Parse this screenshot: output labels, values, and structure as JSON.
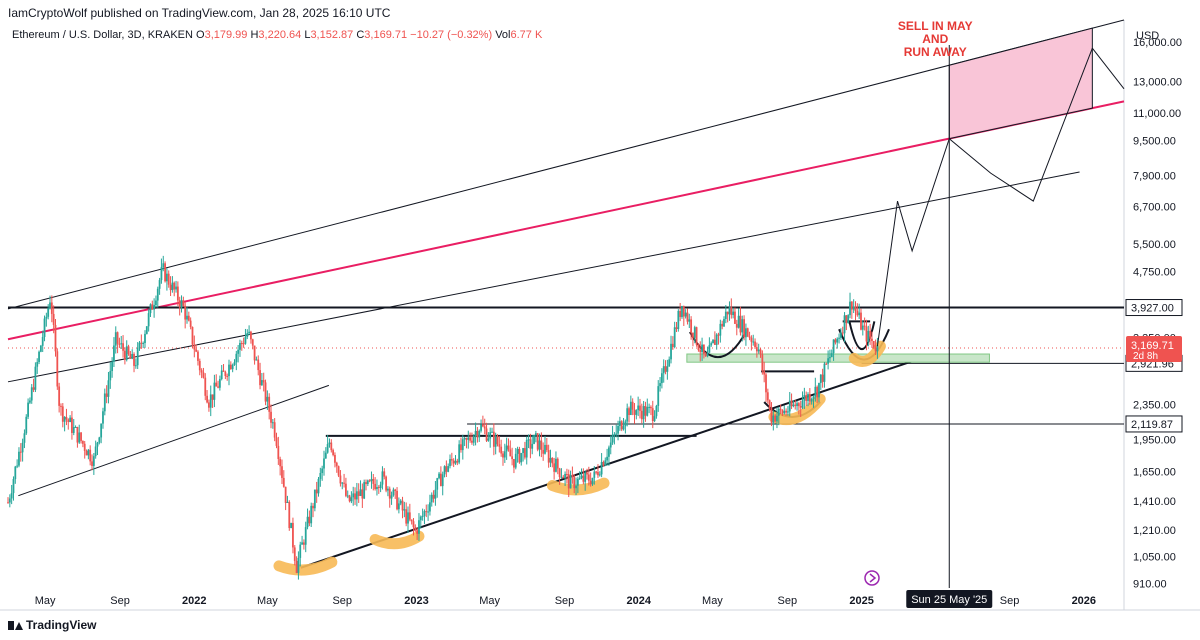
{
  "publisher": "IamCryptoWolf published on TradingView.com, Jan 28, 2025 16:10 UTC",
  "legend": {
    "symbol": "Ethereum / U.S. Dollar, 3D, KRAKEN",
    "open_label": "O",
    "open": "3,179.99",
    "high_label": "H",
    "high": "3,220.64",
    "low_label": "L",
    "low": "3,152.87",
    "close_label": "C",
    "close": "3,169.71",
    "change": "−10.27 (−0.32%)",
    "vol_label": "Vol",
    "vol": "6.77 K"
  },
  "currency": "USD",
  "footer_brand": "TradingView",
  "colors": {
    "up": "#26a69a",
    "down": "#ef5350",
    "pink_line": "#e91e63",
    "zone": "#f8bbd0",
    "support_zone": "#c8e6c9",
    "highlight": "#f7b955"
  },
  "chart_data": {
    "type": "candlestick",
    "title": "Ethereum / U.S. Dollar, 3D, KRAKEN",
    "xlabel": "",
    "ylabel": "USD",
    "x_range": [
      "2021-03",
      "2026-03"
    ],
    "y_scale": "log",
    "y_range": [
      880,
      18000
    ],
    "y_ticks": [
      16000,
      13000,
      11000,
      9500,
      7900,
      6700,
      5500,
      4750,
      3927,
      3350,
      2921.96,
      2350,
      2119.87,
      1950,
      1650,
      1410,
      1210,
      1050,
      910
    ],
    "y_tick_labels": [
      "16,000.00",
      "13,000.00",
      "11,000.00",
      "9,500.00",
      "7,900.00",
      "6,700.00",
      "5,500.00",
      "4,750.00",
      "3,927.00",
      "3,350.00",
      "2,921.96",
      "2,350.00",
      "2,119.87",
      "1,950.00",
      "1,650.00",
      "1,410.00",
      "1,210.00",
      "1,050.00",
      "910.00"
    ],
    "x_ticks": [
      {
        "date": "2021-05",
        "label": "May"
      },
      {
        "date": "2021-09",
        "label": "Sep"
      },
      {
        "date": "2022-01",
        "label": "2022"
      },
      {
        "date": "2022-05",
        "label": "May"
      },
      {
        "date": "2022-09",
        "label": "Sep"
      },
      {
        "date": "2023-01",
        "label": "2023"
      },
      {
        "date": "2023-05",
        "label": "May"
      },
      {
        "date": "2023-09",
        "label": "Sep"
      },
      {
        "date": "2024-01",
        "label": "2024"
      },
      {
        "date": "2024-05",
        "label": "May"
      },
      {
        "date": "2024-09",
        "label": "Sep"
      },
      {
        "date": "2025-01",
        "label": "2025"
      },
      {
        "date": "2025-05",
        "label": "May"
      },
      {
        "date": "2025-09",
        "label": "Sep"
      },
      {
        "date": "2026-01",
        "label": "2026"
      }
    ],
    "price_path": [
      [
        "2021-03-01",
        1400
      ],
      [
        "2021-04-01",
        2200
      ],
      [
        "2021-05-10",
        4200
      ],
      [
        "2021-05-25",
        2300
      ],
      [
        "2021-07-20",
        1750
      ],
      [
        "2021-08-25",
        3300
      ],
      [
        "2021-09-25",
        2900
      ],
      [
        "2021-11-10",
        4800
      ],
      [
        "2021-12-15",
        3900
      ],
      [
        "2022-01-25",
        2400
      ],
      [
        "2022-03-30",
        3450
      ],
      [
        "2022-05-15",
        2000
      ],
      [
        "2022-06-18",
        1000
      ],
      [
        "2022-08-12",
        1950
      ],
      [
        "2022-09-10",
        1400
      ],
      [
        "2022-11-05",
        1600
      ],
      [
        "2022-12-30",
        1200
      ],
      [
        "2023-02-15",
        1650
      ],
      [
        "2023-04-15",
        2100
      ],
      [
        "2023-06-10",
        1750
      ],
      [
        "2023-07-15",
        1950
      ],
      [
        "2023-09-10",
        1550
      ],
      [
        "2023-10-20",
        1600
      ],
      [
        "2023-12-15",
        2300
      ],
      [
        "2024-01-25",
        2250
      ],
      [
        "2024-03-12",
        4000
      ],
      [
        "2024-04-20",
        2950
      ],
      [
        "2024-05-27",
        3900
      ],
      [
        "2024-07-15",
        3200
      ],
      [
        "2024-08-05",
        2200
      ],
      [
        "2024-09-06",
        2300
      ],
      [
        "2024-10-20",
        2550
      ],
      [
        "2024-12-16",
        4050
      ],
      [
        "2025-01-05",
        3450
      ],
      [
        "2025-01-27",
        3169.71
      ]
    ],
    "current_price": "3,169.71",
    "current_countdown": "2d 8h",
    "levels": [
      "3,927.00",
      "2,921.96",
      "2,119.87"
    ],
    "projection_path": [
      [
        "2025-01-27",
        3200
      ],
      [
        "2025-03-01",
        6900
      ],
      [
        "2025-03-25",
        5300
      ],
      [
        "2025-05-25",
        9600
      ],
      [
        "2025-08-01",
        8000
      ],
      [
        "2025-10-10",
        6900
      ],
      [
        "2026-01-15",
        15500
      ]
    ],
    "crosshair_date_label": "Sun 25 May '25",
    "annotation": {
      "lines": [
        "SELL IN MAY",
        "AND",
        "RUN AWAY"
      ],
      "color": "#e53935"
    }
  }
}
